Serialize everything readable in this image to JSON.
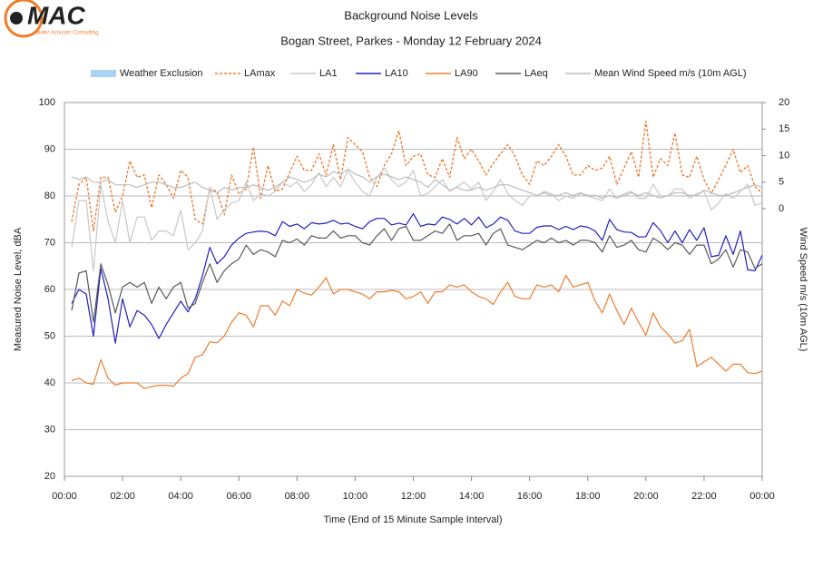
{
  "logo": {
    "text": "MAC",
    "tagline": "Muller Acoustic Consulting"
  },
  "chart_data": {
    "type": "line",
    "title": "Background Noise Levels",
    "subtitle": "Bogan Street, Parkes - Monday 12 February 2024",
    "x_label": "Time (End of 15 Minute Sample Interval)",
    "y_label": "Measured Noise Level, dBA",
    "y2_label": "Wind Speed m/s (10m AGL)",
    "xlim": [
      0,
      24
    ],
    "xticks": [
      {
        "value": 0,
        "label": "00:00"
      },
      {
        "value": 2,
        "label": "02:00"
      },
      {
        "value": 4,
        "label": "04:00"
      },
      {
        "value": 6,
        "label": "06:00"
      },
      {
        "value": 8,
        "label": "08:00"
      },
      {
        "value": 10,
        "label": "10:00"
      },
      {
        "value": 12,
        "label": "12:00"
      },
      {
        "value": 14,
        "label": "14:00"
      },
      {
        "value": 16,
        "label": "16:00"
      },
      {
        "value": 18,
        "label": "18:00"
      },
      {
        "value": 20,
        "label": "20:00"
      },
      {
        "value": 22,
        "label": "22:00"
      },
      {
        "value": 24,
        "label": "00:00"
      }
    ],
    "ylim": [
      20,
      100
    ],
    "yticks": [
      20,
      30,
      40,
      50,
      60,
      70,
      80,
      90,
      100
    ],
    "y2lim": [
      -50.4,
      20
    ],
    "y2ticks": [
      0,
      5,
      10,
      15,
      20
    ],
    "grid": true,
    "legend_position": "top",
    "weather_exclusion": {
      "name": "Weather Exclusion",
      "color": "#a9d5f2"
    },
    "x": [
      0.25,
      0.5,
      0.75,
      1,
      1.25,
      1.5,
      1.75,
      2,
      2.25,
      2.5,
      2.75,
      3,
      3.25,
      3.5,
      3.75,
      4,
      4.25,
      4.5,
      4.75,
      5,
      5.25,
      5.5,
      5.75,
      6,
      6.25,
      6.5,
      6.75,
      7,
      7.25,
      7.5,
      7.75,
      8,
      8.25,
      8.5,
      8.75,
      9,
      9.25,
      9.5,
      9.75,
      10,
      10.25,
      10.5,
      10.75,
      11,
      11.25,
      11.5,
      11.75,
      12,
      12.25,
      12.5,
      12.75,
      13,
      13.25,
      13.5,
      13.75,
      14,
      14.25,
      14.5,
      14.75,
      15,
      15.25,
      15.5,
      15.75,
      16,
      16.25,
      16.5,
      16.75,
      17,
      17.25,
      17.5,
      17.75,
      18,
      18.25,
      18.5,
      18.75,
      19,
      19.25,
      19.5,
      19.75,
      20,
      20.25,
      20.5,
      20.75,
      21,
      21.25,
      21.5,
      21.75,
      22,
      22.25,
      22.5,
      22.75,
      23,
      23.25,
      23.5,
      23.75,
      24
    ],
    "series": [
      {
        "name": "LAmax",
        "color": "#ed7d31",
        "dash": true,
        "values": [
          74.5,
          82.5,
          84,
          72.5,
          84,
          84,
          76.5,
          80,
          87.5,
          84,
          84.5,
          77.5,
          84.5,
          82.5,
          79.5,
          85.5,
          84,
          75,
          74,
          81.5,
          81,
          76,
          84.5,
          80.5,
          81.5,
          90.5,
          79.5,
          86.5,
          81,
          81.5,
          85,
          88.5,
          85.5,
          85.5,
          89,
          84.5,
          91,
          83.5,
          92.5,
          91,
          89.5,
          84,
          82,
          86.5,
          89,
          94,
          86.5,
          88.5,
          89,
          84.5,
          84,
          88,
          84,
          92.5,
          88,
          90,
          87.5,
          84.5,
          87,
          89,
          91,
          88.5,
          84.5,
          82.5,
          87.5,
          86.5,
          88.5,
          91,
          88.5,
          84.5,
          84.5,
          86.5,
          85.5,
          86,
          88.5,
          82.5,
          86,
          89.5,
          84,
          96,
          84,
          88,
          86.5,
          93.5,
          84.5,
          84,
          88.5,
          83.5,
          80.5,
          83.5,
          86.5,
          90,
          85,
          86.5,
          82,
          80.5
        ]
      },
      {
        "name": "LA1",
        "color": "#c8c8c8",
        "values": [
          69,
          79,
          79,
          64,
          82.5,
          74.5,
          70,
          79,
          70,
          75.5,
          75.5,
          70.5,
          72.5,
          72.5,
          71.5,
          77,
          68.5,
          70,
          72.5,
          82,
          75,
          77,
          78.5,
          79,
          83,
          79,
          80.5,
          80,
          81,
          83,
          82,
          83,
          81,
          82.5,
          85,
          82,
          84,
          82,
          85.5,
          83,
          81,
          80,
          84,
          86,
          83.5,
          82,
          83,
          85.5,
          80,
          80.5,
          82,
          83.5,
          81,
          82,
          83,
          81.5,
          83,
          79,
          81,
          83.5,
          80.5,
          79,
          78,
          80,
          80,
          81,
          80.5,
          79,
          80,
          79.5,
          80.5,
          80,
          79.5,
          79,
          81.5,
          79.5,
          80.5,
          81,
          79.5,
          79.5,
          82.5,
          80,
          80,
          81.5,
          81.5,
          79.5,
          80.5,
          81,
          77,
          78.5,
          80.5,
          79.5,
          81,
          82.5,
          78,
          78.5
        ]
      },
      {
        "name": "LA10",
        "color": "#2020c0",
        "values": [
          57,
          60,
          59,
          50,
          64.5,
          58,
          48.5,
          58,
          52,
          55.5,
          54.5,
          52.5,
          49.5,
          52.5,
          55,
          57.5,
          55.2,
          58,
          63,
          69,
          65.5,
          67,
          69.5,
          71,
          72,
          72.3,
          72.5,
          72.3,
          71.5,
          74.5,
          73.5,
          74,
          73,
          74.3,
          74,
          74.2,
          74.8,
          74,
          74.2,
          73.5,
          73,
          74.5,
          75.2,
          75.2,
          73.8,
          74.2,
          73.8,
          76.2,
          73.5,
          74,
          73.8,
          75.5,
          75,
          74,
          75.2,
          73.8,
          75.5,
          73.2,
          74,
          75.5,
          74.8,
          72.5,
          72,
          72,
          73.3,
          73.6,
          73.6,
          72.8,
          73.5,
          72.8,
          73.6,
          73.3,
          72.5,
          70.5,
          75,
          72.8,
          72.3,
          72.2,
          71.2,
          71.3,
          74.3,
          72.6,
          70,
          72.5,
          70,
          72.8,
          70.5,
          73.2,
          67,
          67.3,
          71.5,
          67.5,
          72.5,
          64.2,
          64,
          67.3
        ]
      },
      {
        "name": "LA90",
        "color": "#ed7d31",
        "values": [
          40.5,
          41,
          40,
          39.7,
          45,
          41,
          39.5,
          40,
          40,
          40,
          38.8,
          39.2,
          39.5,
          39.5,
          39.3,
          41,
          42,
          45.5,
          46,
          48.8,
          48.6,
          50,
          53,
          55,
          54.5,
          52,
          56.5,
          56.5,
          54.5,
          57.5,
          56.5,
          60,
          59.2,
          58.8,
          60.5,
          62.5,
          59,
          60,
          60,
          59.5,
          59,
          58,
          59.5,
          59.5,
          59.8,
          59.5,
          58,
          58.5,
          59.5,
          57,
          59.5,
          59.5,
          61,
          60.5,
          61,
          59.5,
          58.5,
          58,
          56.8,
          59.5,
          61.5,
          58.5,
          58,
          58,
          61,
          60.5,
          61,
          59.5,
          63,
          60.5,
          61,
          61.5,
          57.5,
          55,
          59,
          55.5,
          52.5,
          56,
          53,
          50.2,
          55,
          52,
          50.5,
          48.5,
          49,
          51.5,
          43.5,
          44.5,
          45.5,
          44,
          42.5,
          44,
          44,
          42.2,
          42,
          42.5
        ]
      },
      {
        "name": "LAeq",
        "color": "#595959",
        "values": [
          55.5,
          63.5,
          64,
          53,
          65.5,
          61,
          55,
          60.5,
          61.5,
          60.5,
          61.5,
          57,
          60.5,
          58,
          60.5,
          61.5,
          56,
          57,
          61.5,
          65.5,
          61.5,
          64,
          65.5,
          66.5,
          69.5,
          67.5,
          68.5,
          68,
          67,
          70.5,
          70,
          70.8,
          69.5,
          71.5,
          71,
          71,
          72.5,
          71,
          71.5,
          71.5,
          70,
          69.5,
          71.5,
          73,
          70.5,
          73,
          73.5,
          70.5,
          70.5,
          71.5,
          72.5,
          72,
          74,
          70.5,
          71.5,
          71.5,
          72,
          69.5,
          72,
          73,
          69.5,
          69,
          68.5,
          69.5,
          70.5,
          70,
          71,
          70,
          70.5,
          69.5,
          70.5,
          70.5,
          70,
          68,
          71.5,
          69,
          69.5,
          70.5,
          68.5,
          68,
          71,
          70,
          68.5,
          70,
          69.5,
          67.5,
          69.5,
          69.5,
          65.5,
          66.5,
          68.5,
          64.8,
          68.5,
          68,
          64.5,
          65.5
        ]
      },
      {
        "name": "Mean Wind Speed m/s (10m AGL)",
        "color": "#bdbdbd",
        "axis": "y2",
        "values": [
          6,
          5.5,
          6,
          5,
          5,
          5.5,
          4.5,
          4.5,
          4.5,
          4,
          4.5,
          5,
          5,
          4.5,
          4,
          4,
          4.5,
          5,
          4,
          3.5,
          3,
          4,
          3.5,
          4,
          4,
          4.5,
          4,
          3.5,
          4,
          5,
          6,
          5.5,
          5,
          5.5,
          6.5,
          6,
          7,
          6.5,
          7.5,
          6.5,
          6,
          5,
          6,
          6.5,
          6,
          5.5,
          6,
          5.5,
          5,
          4,
          5.5,
          4.5,
          3.5,
          4,
          3.5,
          3.5,
          4,
          3.5,
          4,
          4.5,
          4.5,
          4,
          3.5,
          3,
          2.5,
          3,
          2.5,
          2.5,
          3,
          2.5,
          3,
          2.5,
          2.5,
          2,
          2.5,
          2,
          2.5,
          3,
          2.5,
          3,
          2.5,
          2,
          2.5,
          3,
          3,
          2.5,
          2.5,
          3.5,
          3,
          2.5,
          2.5,
          3,
          3.5,
          4,
          4.5,
          4
        ]
      }
    ]
  }
}
